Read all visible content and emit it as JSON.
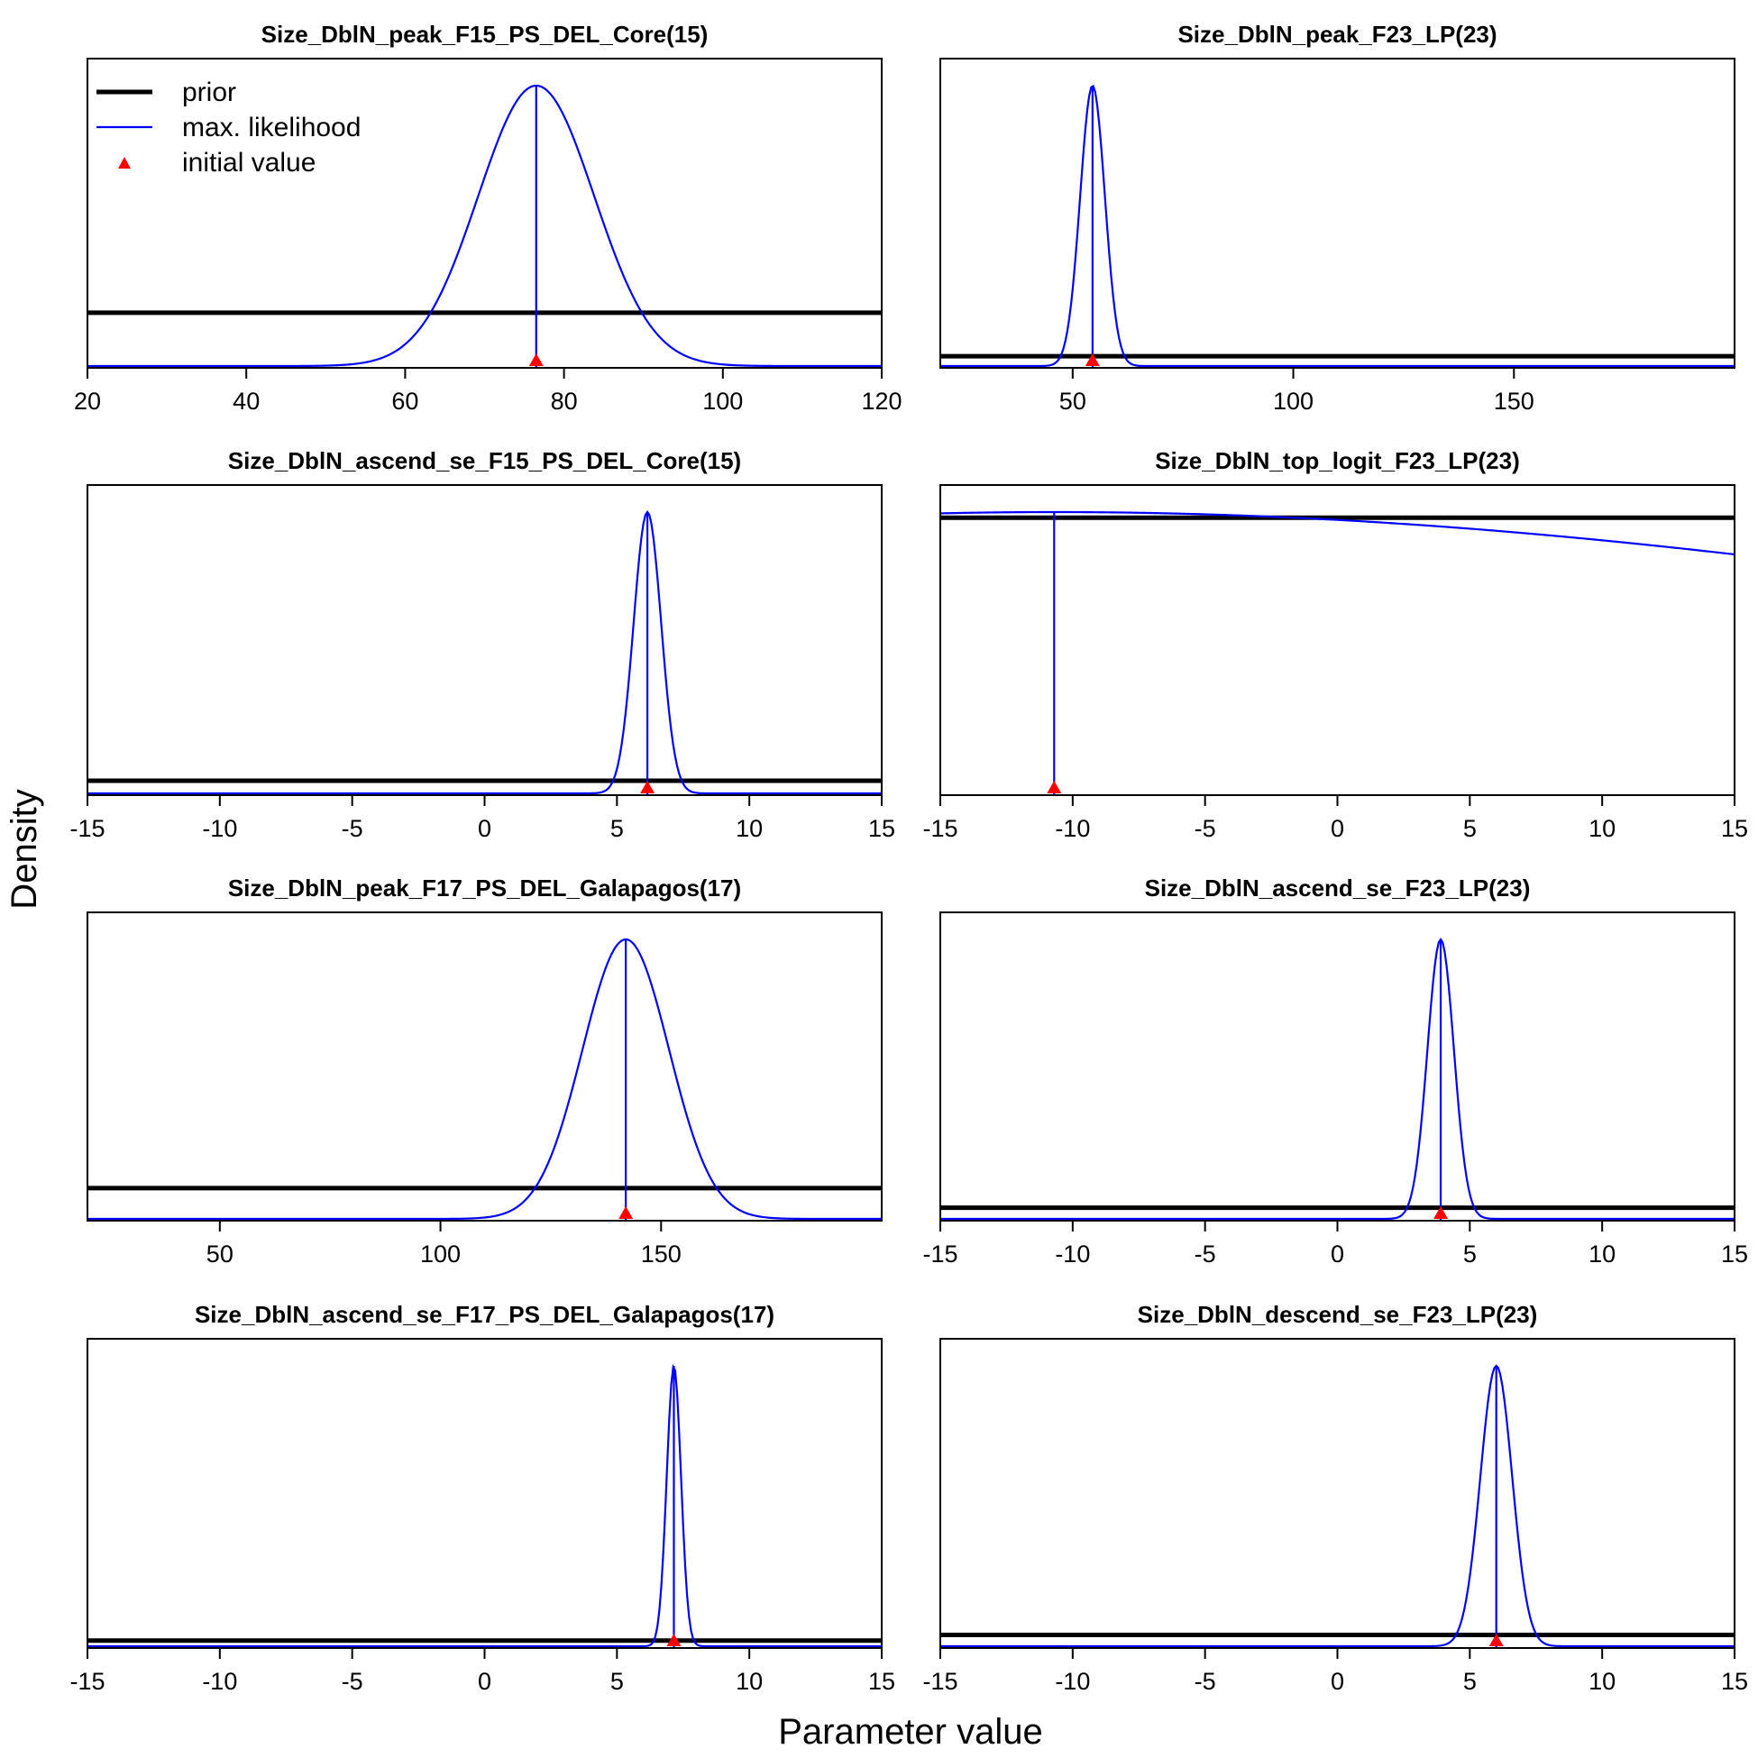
{
  "figure": {
    "ylabel": "Density",
    "xlabel": "Parameter value"
  },
  "legend": {
    "prior_label": "prior",
    "mle_label": "max. likelihood",
    "initial_label": "initial value"
  },
  "colors": {
    "prior": "#000000",
    "mle": "#0000ff",
    "initial": "#ff0000",
    "frame": "#000000"
  },
  "chart_data": [
    {
      "type": "line",
      "title": "Size_DblN_peak_F15_PS_DEL_Core(15)",
      "xlim": [
        20,
        120
      ],
      "xticks": [
        20,
        40,
        60,
        80,
        100,
        120
      ],
      "mle": 76.5,
      "sd": 7.3,
      "initial": 76.5,
      "prior_level": 0.19,
      "legend": true
    },
    {
      "type": "line",
      "title": "Size_DblN_peak_F23_LP(23)",
      "xlim": [
        20,
        200
      ],
      "xticks": [
        50,
        100,
        150
      ],
      "mle": 54.5,
      "sd": 2.8,
      "initial": 54.5,
      "prior_level": 0.035
    },
    {
      "type": "line",
      "title": "Size_DblN_ascend_se_F15_PS_DEL_Core(15)",
      "xlim": [
        -15,
        15
      ],
      "xticks": [
        -15,
        -10,
        -5,
        0,
        5,
        10,
        15
      ],
      "mle": 6.15,
      "sd": 0.52,
      "initial": 6.15,
      "prior_level": 0.045
    },
    {
      "type": "line",
      "title": "Size_DblN_top_logit_F23_LP(23)",
      "xlim": [
        -15,
        15
      ],
      "xticks": [
        -15,
        -10,
        -5,
        0,
        5,
        10,
        15
      ],
      "mle": -10.7,
      "sd": 45,
      "initial": -10.7,
      "prior_level": 0.98,
      "mle_peak": 1.0
    },
    {
      "type": "line",
      "title": "Size_DblN_peak_F17_PS_DEL_Galapagos(17)",
      "xlim": [
        20,
        200
      ],
      "xticks": [
        50,
        100,
        150
      ],
      "mle": 142,
      "sd": 9.8,
      "initial": 142,
      "prior_level": 0.11
    },
    {
      "type": "line",
      "title": "Size_DblN_ascend_se_F23_LP(23)",
      "xlim": [
        -15,
        15
      ],
      "xticks": [
        -15,
        -10,
        -5,
        0,
        5,
        10,
        15
      ],
      "mle": 3.9,
      "sd": 0.5,
      "initial": 3.9,
      "prior_level": 0.04
    },
    {
      "type": "line",
      "title": "Size_DblN_ascend_se_F17_PS_DEL_Galapagos(17)",
      "xlim": [
        -15,
        15
      ],
      "xticks": [
        -15,
        -10,
        -5,
        0,
        5,
        10,
        15
      ],
      "mle": 7.15,
      "sd": 0.27,
      "initial": 7.15,
      "prior_level": 0.02
    },
    {
      "type": "line",
      "title": "Size_DblN_descend_se_F23_LP(23)",
      "xlim": [
        -15,
        15
      ],
      "xticks": [
        -15,
        -10,
        -5,
        0,
        5,
        10,
        15
      ],
      "mle": 6.0,
      "sd": 0.6,
      "initial": 6.0,
      "prior_level": 0.04
    }
  ]
}
